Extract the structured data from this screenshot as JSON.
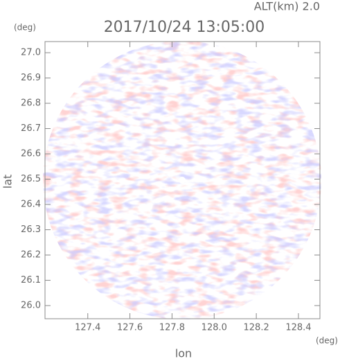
{
  "chart_data": {
    "type": "radar",
    "title": "2017/10/24 13:05:00",
    "subtitle": "ALT(km) 2.0",
    "x_label": "lon",
    "x_unit": "(deg)",
    "y_label": "lat",
    "y_unit": "(deg)",
    "xlim": [
      127.197,
      128.502
    ],
    "xticks": [
      127.4,
      127.6,
      127.8,
      {
        "value": 128,
        "label": "128.0"
      },
      128.2,
      128.4
    ],
    "ylim": [
      25.948,
      27.044
    ],
    "yticks": [
      {
        "value": 26,
        "label": "26.0"
      },
      26.1,
      26.2,
      26.3,
      26.4,
      26.5,
      26.6,
      26.7,
      26.8,
      26.9,
      {
        "value": 27,
        "label": "27.0"
      }
    ],
    "grid": false
  }
}
